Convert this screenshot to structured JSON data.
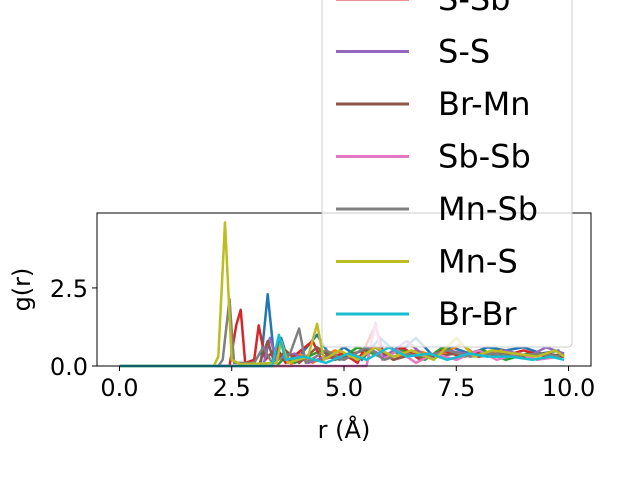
{
  "chart_data": {
    "type": "line",
    "xlabel": "r (Å)",
    "ylabel": "g(r)",
    "xlim": [
      -0.5,
      10.5
    ],
    "ylim": [
      0.0,
      4.9
    ],
    "xticks": [
      "0.0",
      "2.5",
      "5.0",
      "7.5",
      "10.0"
    ],
    "yticks": [
      "0.0",
      "2.5"
    ],
    "grid": false,
    "legend_position": "upper-right (extends above the plot area)",
    "series": [
      {
        "name": "",
        "color": "#1f77b4",
        "points": [
          [
            0,
            0
          ],
          [
            3.0,
            0
          ],
          [
            3.15,
            0.1
          ],
          [
            3.3,
            2.3
          ],
          [
            3.45,
            0.2
          ],
          [
            3.6,
            0.9
          ],
          [
            3.75,
            0.2
          ],
          [
            4.0,
            0.3
          ],
          [
            4.4,
            1.0
          ],
          [
            4.7,
            0.3
          ],
          [
            5.0,
            0.6
          ],
          [
            5.4,
            0.2
          ],
          [
            5.8,
            0.9
          ],
          [
            6.2,
            0.4
          ],
          [
            6.6,
            0.9
          ],
          [
            7.0,
            0.3
          ],
          [
            7.4,
            0.6
          ],
          [
            7.8,
            0.4
          ],
          [
            8.2,
            0.6
          ],
          [
            8.6,
            0.5
          ],
          [
            9.0,
            0.6
          ],
          [
            9.4,
            0.4
          ],
          [
            9.8,
            0.5
          ]
        ]
      },
      {
        "name": "",
        "color": "#ff7f0e",
        "points": [
          [
            0,
            0
          ],
          [
            3.8,
            0
          ],
          [
            4.0,
            0.4
          ],
          [
            4.3,
            0.1
          ],
          [
            4.8,
            0.5
          ],
          [
            5.2,
            0.2
          ],
          [
            5.7,
            0.6
          ],
          [
            6.1,
            0.2
          ],
          [
            6.6,
            0.5
          ],
          [
            7.1,
            0.3
          ],
          [
            7.6,
            0.7
          ],
          [
            8.0,
            0.3
          ],
          [
            8.5,
            0.5
          ],
          [
            9.0,
            0.3
          ],
          [
            9.5,
            0.4
          ],
          [
            9.9,
            0.3
          ]
        ]
      },
      {
        "name": "",
        "color": "#2ca02c",
        "points": [
          [
            0,
            0
          ],
          [
            3.5,
            0
          ],
          [
            3.7,
            0.3
          ],
          [
            3.9,
            0.1
          ],
          [
            4.5,
            0.5
          ],
          [
            4.9,
            0.2
          ],
          [
            5.3,
            0.6
          ],
          [
            5.8,
            0.3
          ],
          [
            6.3,
            0.5
          ],
          [
            6.8,
            0.2
          ],
          [
            7.2,
            0.6
          ],
          [
            7.7,
            0.3
          ],
          [
            8.1,
            0.5
          ],
          [
            8.6,
            0.2
          ],
          [
            9.1,
            0.4
          ],
          [
            9.6,
            0.3
          ],
          [
            9.9,
            0.4
          ]
        ]
      },
      {
        "name": "S-Sb",
        "color": "#d62728",
        "points": [
          [
            0,
            0
          ],
          [
            2.45,
            0
          ],
          [
            2.6,
            1.3
          ],
          [
            2.7,
            1.8
          ],
          [
            2.8,
            0.1
          ],
          [
            3.0,
            0.2
          ],
          [
            3.1,
            1.3
          ],
          [
            3.25,
            0.2
          ],
          [
            3.5,
            0.6
          ],
          [
            3.7,
            0.1
          ],
          [
            4.3,
            0.8
          ],
          [
            4.5,
            0.2
          ],
          [
            5.0,
            0.4
          ],
          [
            5.3,
            0.1
          ],
          [
            5.7,
            1.3
          ],
          [
            5.9,
            0.3
          ],
          [
            6.3,
            0.6
          ],
          [
            6.7,
            0.2
          ],
          [
            7.2,
            0.5
          ],
          [
            7.6,
            0.3
          ],
          [
            8.0,
            0.4
          ],
          [
            8.5,
            0.3
          ],
          [
            9.0,
            0.5
          ],
          [
            9.5,
            0.3
          ],
          [
            9.9,
            0.3
          ]
        ]
      },
      {
        "name": "S-S",
        "color": "#9467bd",
        "points": [
          [
            0,
            0
          ],
          [
            3.2,
            0
          ],
          [
            3.35,
            0.9
          ],
          [
            3.5,
            0.2
          ],
          [
            3.9,
            0.4
          ],
          [
            4.2,
            0.1
          ],
          [
            4.6,
            0.3
          ],
          [
            5.0,
            0.2
          ],
          [
            5.5,
            0.6
          ],
          [
            5.9,
            0.3
          ],
          [
            6.4,
            0.8
          ],
          [
            6.8,
            0.3
          ],
          [
            7.3,
            0.5
          ],
          [
            7.7,
            0.4
          ],
          [
            8.2,
            0.3
          ],
          [
            8.6,
            0.5
          ],
          [
            9.1,
            0.3
          ],
          [
            9.5,
            0.6
          ],
          [
            9.9,
            0.4
          ]
        ]
      },
      {
        "name": "Br-Mn",
        "color": "#8c564b",
        "points": [
          [
            0,
            0
          ],
          [
            3.1,
            0
          ],
          [
            3.3,
            0.8
          ],
          [
            3.45,
            0.1
          ],
          [
            3.7,
            0.5
          ],
          [
            4.0,
            0.1
          ],
          [
            4.4,
            0.6
          ],
          [
            4.8,
            0.2
          ],
          [
            5.2,
            0.4
          ],
          [
            5.7,
            0.6
          ],
          [
            6.1,
            0.2
          ],
          [
            6.6,
            0.4
          ],
          [
            7.0,
            0.3
          ],
          [
            7.5,
            0.4
          ],
          [
            8.0,
            0.3
          ],
          [
            8.5,
            0.4
          ],
          [
            9.0,
            0.3
          ],
          [
            9.5,
            0.4
          ],
          [
            9.9,
            0.3
          ]
        ]
      },
      {
        "name": "Sb-Sb",
        "color": "#e377c2",
        "points": [
          [
            0,
            0
          ],
          [
            5.5,
            0
          ],
          [
            5.7,
            1.4
          ],
          [
            5.85,
            0.2
          ],
          [
            6.2,
            0.5
          ],
          [
            6.6,
            0.1
          ],
          [
            7.0,
            0.4
          ],
          [
            7.5,
            0.2
          ],
          [
            8.0,
            0.5
          ],
          [
            8.4,
            0.2
          ],
          [
            8.9,
            0.4
          ],
          [
            9.3,
            0.2
          ],
          [
            9.8,
            0.3
          ]
        ]
      },
      {
        "name": "Mn-Sb",
        "color": "#7f7f7f",
        "points": [
          [
            0,
            0
          ],
          [
            2.2,
            0
          ],
          [
            2.3,
            0.2
          ],
          [
            2.45,
            2.15
          ],
          [
            2.55,
            0.1
          ],
          [
            3.0,
            0.1
          ],
          [
            3.2,
            0.6
          ],
          [
            3.4,
            0.1
          ],
          [
            3.8,
            0.4
          ],
          [
            4.0,
            1.2
          ],
          [
            4.15,
            0.1
          ],
          [
            4.6,
            0.5
          ],
          [
            5.0,
            0.2
          ],
          [
            5.5,
            0.6
          ],
          [
            5.9,
            0.2
          ],
          [
            6.3,
            0.4
          ],
          [
            6.8,
            0.3
          ],
          [
            7.3,
            0.5
          ],
          [
            7.8,
            0.3
          ],
          [
            8.3,
            0.4
          ],
          [
            8.8,
            0.3
          ],
          [
            9.3,
            0.4
          ],
          [
            9.8,
            0.3
          ]
        ]
      },
      {
        "name": "Mn-S",
        "color": "#bcbd22",
        "points": [
          [
            0,
            0
          ],
          [
            2.1,
            0
          ],
          [
            2.2,
            0.3
          ],
          [
            2.35,
            4.6
          ],
          [
            2.5,
            0.2
          ],
          [
            2.7,
            0.05
          ],
          [
            3.5,
            0.1
          ],
          [
            3.6,
            0.8
          ],
          [
            3.75,
            0.1
          ],
          [
            4.2,
            0.3
          ],
          [
            4.4,
            1.35
          ],
          [
            4.55,
            0.2
          ],
          [
            4.9,
            0.5
          ],
          [
            5.3,
            0.2
          ],
          [
            5.7,
            0.6
          ],
          [
            6.1,
            0.3
          ],
          [
            6.5,
            0.5
          ],
          [
            7.0,
            0.2
          ],
          [
            7.5,
            0.9
          ],
          [
            7.9,
            0.3
          ],
          [
            8.3,
            0.5
          ],
          [
            8.8,
            0.4
          ],
          [
            9.3,
            0.3
          ],
          [
            9.7,
            0.5
          ],
          [
            9.9,
            0.3
          ]
        ]
      },
      {
        "name": "Br-Br",
        "color": "#17becf",
        "points": [
          [
            0,
            0
          ],
          [
            3.4,
            0
          ],
          [
            3.55,
            1.0
          ],
          [
            3.7,
            0.2
          ],
          [
            4.1,
            0.3
          ],
          [
            4.6,
            0.1
          ],
          [
            5.1,
            0.4
          ],
          [
            5.5,
            0.2
          ],
          [
            6.0,
            0.6
          ],
          [
            6.4,
            0.3
          ],
          [
            6.9,
            0.4
          ],
          [
            7.3,
            0.2
          ],
          [
            7.8,
            0.4
          ],
          [
            8.2,
            0.3
          ],
          [
            8.7,
            0.3
          ],
          [
            9.2,
            0.2
          ],
          [
            9.6,
            0.3
          ],
          [
            9.9,
            0.2
          ]
        ]
      }
    ]
  }
}
